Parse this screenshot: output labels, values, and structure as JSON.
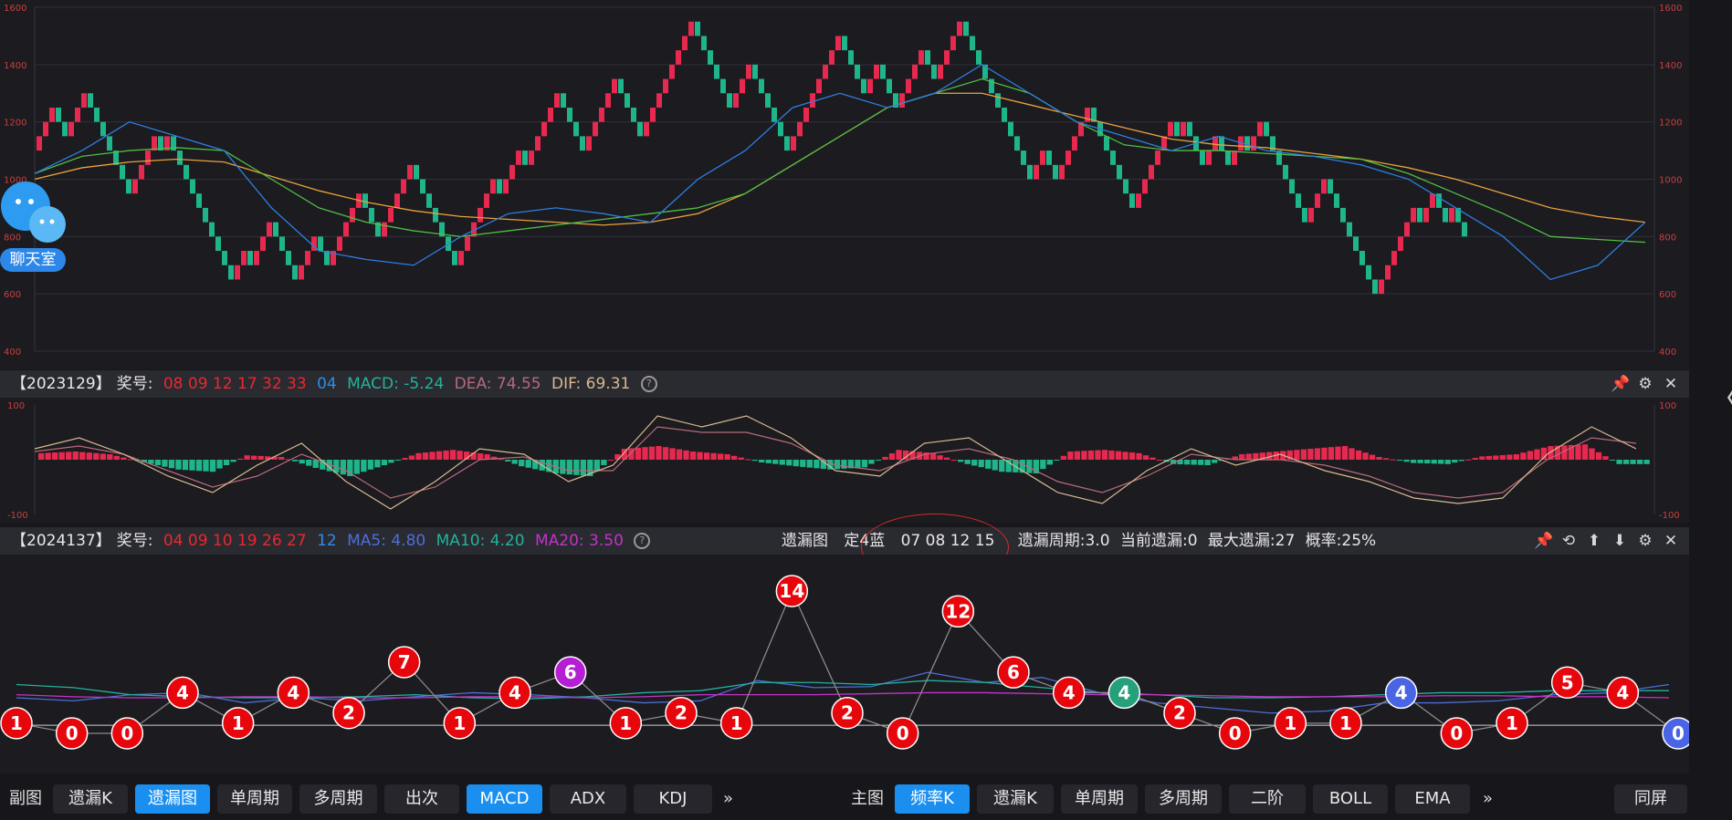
{
  "macd_info": {
    "period": "【2023129】",
    "prize_label": "奖号:",
    "red_numbers": "08 09 12 17 32 33",
    "blue_number": "04",
    "macd": "MACD: -5.24",
    "dea": "DEA: 74.55",
    "dif": "DIF: 69.31"
  },
  "omit_info": {
    "period": "【2024137】",
    "prize_label": "奖号:",
    "red_numbers": "04 09 10 19 26 27",
    "blue_number": "12",
    "ma5": "MA5: 4.80",
    "ma10": "MA10: 4.20",
    "ma20": "MA20: 3.50",
    "chart_name": "遗漏图",
    "fixed": "定4蓝",
    "fixed_numbers": "07 08 12 15",
    "cycle": "遗漏周期:3.0",
    "current": "当前遗漏:0",
    "max": "最大遗漏:27",
    "prob": "概率:25%"
  },
  "icons": {
    "pin": "pin-icon",
    "settings": "gear-icon",
    "close": "close-icon",
    "up": "arrow-up-icon",
    "down": "arrow-down-icon",
    "reset": "reset-icon",
    "help": "help-icon",
    "chat": "chat-bubble-icon",
    "collapse": "chevron-left-icon"
  },
  "chat_label": "聊天室",
  "side_chevron": "〈",
  "help_glyph": "?",
  "bottom": {
    "sub_label": "副图",
    "sub_tabs": [
      "遗漏K",
      "遗漏图",
      "单周期",
      "多周期",
      "出次",
      "MACD",
      "ADX",
      "KDJ"
    ],
    "more1": "»",
    "main_label": "主图",
    "main_tabs": [
      "频率K",
      "遗漏K",
      "单周期",
      "多周期",
      "二阶",
      "BOLL",
      "EMA"
    ],
    "more2": "»",
    "fullscreen": "同屏"
  },
  "colors": {
    "up": "#e8294f",
    "down": "#1fb58a",
    "ma_blue": "#2e7fe0",
    "ma_green": "#4fbf43",
    "ma_orange": "#e9a23b",
    "bubble_red": "#e8060d",
    "bubble_purple": "#b41fd3",
    "bubble_green": "#25a07a",
    "bubble_blue": "#4a64e6"
  },
  "chart_data": [
    {
      "type": "line",
      "title": "频率K",
      "ylim": [
        400,
        1600
      ],
      "y_ticks": [
        "1600",
        "1400",
        "1200",
        "1000",
        "800",
        "600",
        "400"
      ],
      "grid": true,
      "brick_path": [
        1100,
        1250,
        1150,
        1200,
        1250,
        1300,
        1150,
        1100,
        950,
        1050,
        1150,
        1100,
        1150,
        1100,
        750,
        650,
        750,
        700,
        850,
        650,
        800,
        700,
        800,
        850,
        950,
        800,
        1000,
        1050,
        700,
        1000,
        950,
        1050,
        1100,
        1050,
        1200,
        1300,
        1100,
        1250,
        1350,
        1150,
        1550,
        1250,
        1400,
        1100,
        1500,
        1300,
        1400,
        1250,
        1450,
        1350,
        1550,
        1000,
        1100,
        1000,
        1050,
        1250,
        900,
        1200,
        1150,
        1200,
        1050,
        1150,
        1050,
        1150,
        1100,
        1200,
        850,
        1000,
        650,
        600,
        900,
        850,
        950,
        850,
        900,
        800
      ],
      "ma_blue": [
        1020,
        1100,
        1200,
        1150,
        1100,
        900,
        750,
        720,
        700,
        800,
        880,
        900,
        880,
        850,
        1000,
        1100,
        1250,
        1300,
        1250,
        1300,
        1400,
        1300,
        1200,
        1150,
        1100,
        1150,
        1100,
        1080,
        1050,
        1000,
        900,
        800,
        650,
        700,
        850
      ],
      "ma_green": [
        1020,
        1080,
        1100,
        1110,
        1100,
        1000,
        900,
        850,
        820,
        800,
        820,
        840,
        860,
        880,
        900,
        950,
        1050,
        1150,
        1250,
        1300,
        1350,
        1300,
        1200,
        1120,
        1100,
        1100,
        1090,
        1080,
        1070,
        1020,
        950,
        880,
        800,
        790,
        780
      ],
      "ma_orange": [
        1000,
        1040,
        1060,
        1070,
        1060,
        1010,
        960,
        920,
        890,
        870,
        860,
        850,
        840,
        850,
        880,
        950,
        1050,
        1150,
        1250,
        1300,
        1300,
        1260,
        1220,
        1180,
        1140,
        1120,
        1110,
        1090,
        1070,
        1040,
        1000,
        950,
        900,
        870,
        850
      ]
    },
    {
      "type": "bar",
      "title": "MACD",
      "ylim": [
        -100,
        100
      ],
      "y_ticks": [
        "100",
        "-100"
      ],
      "histogram": [
        12,
        15,
        10,
        -5,
        -18,
        -22,
        8,
        5,
        -15,
        -30,
        -10,
        12,
        18,
        10,
        -12,
        -25,
        -30,
        20,
        25,
        15,
        10,
        -5,
        -12,
        -18,
        -14,
        18,
        12,
        -8,
        -22,
        -25,
        15,
        18,
        12,
        -8,
        -10,
        10,
        15,
        20,
        25,
        5,
        -6,
        -8,
        6,
        10,
        25,
        28,
        -8
      ],
      "dif": [
        20,
        40,
        10,
        -30,
        -60,
        -10,
        30,
        -40,
        -90,
        -40,
        20,
        10,
        -40,
        -10,
        80,
        60,
        80,
        40,
        -20,
        -30,
        30,
        40,
        -10,
        -60,
        -80,
        -20,
        20,
        -10,
        10,
        -20,
        -40,
        -70,
        -80,
        -70,
        10,
        60,
        20
      ],
      "dea": [
        15,
        25,
        10,
        -20,
        -50,
        -30,
        10,
        -20,
        -70,
        -50,
        0,
        5,
        -20,
        -20,
        60,
        50,
        50,
        30,
        -10,
        -20,
        10,
        20,
        0,
        -40,
        -60,
        -30,
        10,
        0,
        0,
        -10,
        -30,
        -60,
        -70,
        -60,
        0,
        40,
        30
      ]
    },
    {
      "type": "line",
      "title": "遗漏图",
      "x_labels": [],
      "values": [
        1,
        0,
        0,
        4,
        1,
        4,
        2,
        7,
        1,
        4,
        6,
        1,
        2,
        1,
        14,
        2,
        0,
        12,
        6,
        4,
        4,
        2,
        0,
        1,
        1,
        4,
        0,
        1,
        5,
        4,
        0
      ],
      "series": [
        {
          "name": "MA5",
          "values": [
            3.5,
            3.2,
            3.8,
            4.0,
            3.0,
            3.5,
            3.2,
            3.6,
            4.0,
            3.8,
            3.5,
            3.0,
            3.2,
            5.2,
            4.5,
            4.6,
            6.0,
            5.0,
            5.5,
            4.0,
            3.0,
            2.5,
            2.0,
            2.2,
            3.0,
            3.0,
            3.2,
            3.8,
            4.0,
            4.8
          ]
        },
        {
          "name": "MA10",
          "values": [
            4.8,
            4.5,
            3.8,
            3.6,
            3.5,
            3.5,
            3.6,
            3.8,
            3.5,
            3.4,
            3.6,
            4.0,
            4.2,
            5.0,
            5.0,
            4.8,
            5.2,
            5.0,
            4.5,
            4.0,
            3.8,
            3.5,
            3.5,
            3.6,
            3.8,
            4.0,
            4.0,
            4.2,
            4.2,
            4.2
          ]
        },
        {
          "name": "MA20",
          "values": [
            3.8,
            3.6,
            3.5,
            3.5,
            3.6,
            3.6,
            3.5,
            3.5,
            3.6,
            3.6,
            3.5,
            3.6,
            3.8,
            3.8,
            3.8,
            3.9,
            4.0,
            4.0,
            3.9,
            3.8,
            3.8,
            3.7,
            3.6,
            3.6,
            3.6,
            3.7,
            3.7,
            3.6,
            3.6,
            3.5
          ]
        }
      ],
      "bubble_colors": [
        "red",
        "red",
        "red",
        "red",
        "red",
        "red",
        "red",
        "red",
        "red",
        "red",
        "purple",
        "red",
        "red",
        "red",
        "red",
        "red",
        "red",
        "red",
        "red",
        "red",
        "green",
        "red",
        "red",
        "red",
        "red",
        "blue",
        "red",
        "red",
        "red",
        "red",
        "blue"
      ]
    }
  ]
}
